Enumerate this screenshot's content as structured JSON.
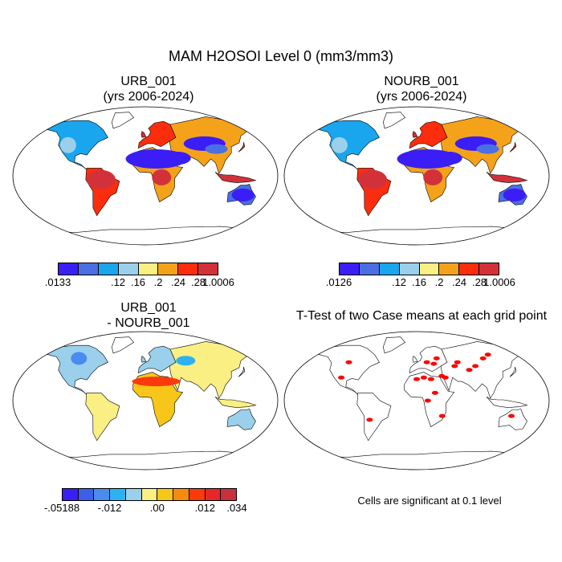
{
  "title": "MAM H2OSOI Level 0 (mm3/mm3)",
  "panels": [
    {
      "line1": "URB_001",
      "line2": "(yrs 2006-2024)"
    },
    {
      "line1": "NOURB_001",
      "line2": "(yrs 2006-2024)"
    },
    {
      "line1": "URB_001",
      "line2": "- NOURB_001"
    },
    {
      "line1": "T-Test of two Case means at each grid point",
      "line2": ""
    }
  ],
  "colorbars": {
    "abs_colors": [
      "#3a1ef5",
      "#4a6fe3",
      "#19a6ef",
      "#9ad0ec",
      "#f9ef83",
      "#f5a21b",
      "#fb2d0c",
      "#d3313a"
    ],
    "urb_labels": [
      ".0133",
      ".12",
      ".16",
      ".2",
      ".24",
      ".28",
      "1.0006"
    ],
    "nourb_labels": [
      ".0126",
      ".12",
      ".16",
      ".2",
      ".24",
      ".28",
      "1.0006"
    ],
    "diff_colors": [
      "#3a1ef5",
      "#3c5fe8",
      "#4a8bf0",
      "#2cb2f0",
      "#9ad0ec",
      "#f9ef83",
      "#f8c61a",
      "#f58b0f",
      "#fb3a0c",
      "#e8262a",
      "#c7313c"
    ],
    "diff_labels": [
      "-.05188",
      "-.012",
      ".00",
      ".012",
      ".034"
    ]
  },
  "significance_note": "Cells are significant at 0.1 level"
}
